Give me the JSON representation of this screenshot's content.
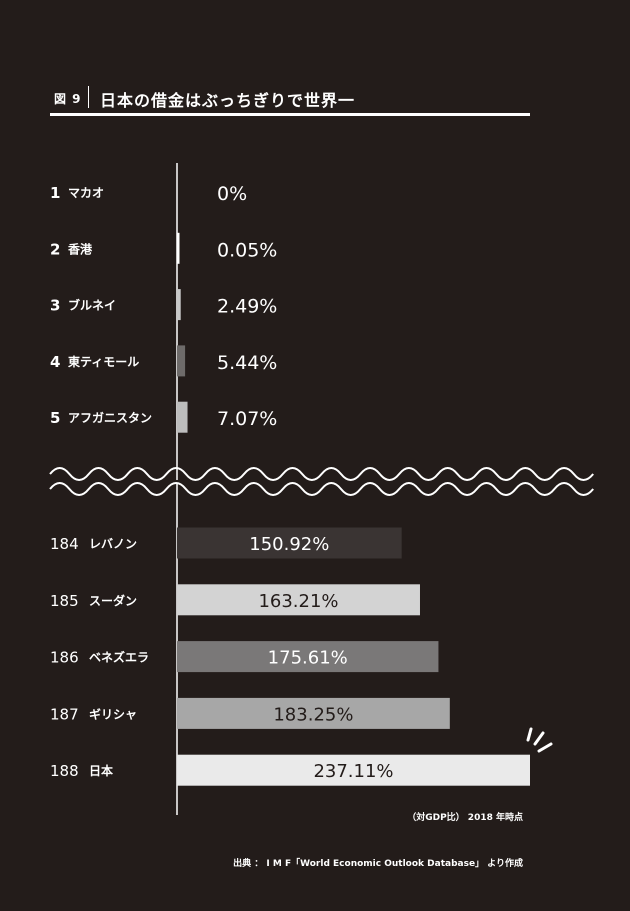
{
  "header": {
    "figure_label": "図 9",
    "title": "日本の借金はぶっちぎりで世界一"
  },
  "footer": {
    "note": "（対GDP比） 2018 年時点",
    "source": "出典 ： I M F「World Economic Outlook Database」 より作成"
  },
  "chart_data": {
    "type": "bar",
    "orientation": "horizontal",
    "axis_break": true,
    "groups": [
      {
        "name": "top",
        "rows": [
          {
            "rank": "1",
            "country": "マカオ",
            "value": 0,
            "label": "0%",
            "color": "#ffffff"
          },
          {
            "rank": "2",
            "country": "香港",
            "value": 0.05,
            "label": "0.05%",
            "color": "#ffffff"
          },
          {
            "rank": "3",
            "country": "ブルネイ",
            "value": 2.49,
            "label": "2.49%",
            "color": "#c9c9c9"
          },
          {
            "rank": "4",
            "country": "東ティモール",
            "value": 5.44,
            "label": "5.44%",
            "color": "#6e6b6a"
          },
          {
            "rank": "5",
            "country": "アフガニスタン",
            "value": 7.07,
            "label": "7.07%",
            "color": "#bdbdbd"
          }
        ]
      },
      {
        "name": "bottom",
        "rows": [
          {
            "rank": "184",
            "country": "レバノン",
            "value": 150.92,
            "label": "150.92%",
            "color": "#3a3433",
            "text_color": "#ffffff"
          },
          {
            "rank": "185",
            "country": "スーダン",
            "value": 163.21,
            "label": "163.21%",
            "color": "#d3d3d3",
            "text_color": "#231c1a"
          },
          {
            "rank": "186",
            "country": "ベネズエラ",
            "value": 175.61,
            "label": "175.61%",
            "color": "#7a7878",
            "text_color": "#ffffff"
          },
          {
            "rank": "187",
            "country": "ギリシャ",
            "value": 183.25,
            "label": "183.25%",
            "color": "#a7a7a7",
            "text_color": "#231c1a"
          },
          {
            "rank": "188",
            "country": "日本",
            "value": 237.11,
            "label": "237.11%",
            "color": "#eaeaea",
            "text_color": "#231c1a"
          }
        ]
      }
    ]
  }
}
